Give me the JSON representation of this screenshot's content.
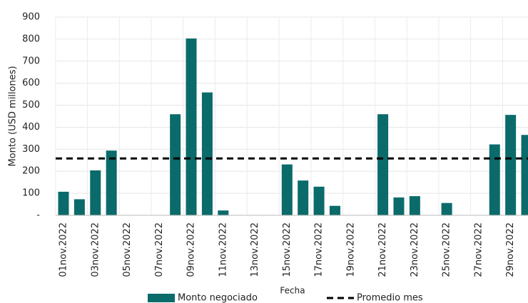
{
  "chart_data": {
    "type": "bar",
    "x_label": "Fecha",
    "y_label": "Monto (USD millones)",
    "categories": [
      "01nov.2022",
      null,
      "03nov.2022",
      null,
      "05nov.2022",
      null,
      "07nov.2022",
      null,
      "09nov.2022",
      null,
      "11nov.2022",
      null,
      "13nov.2022",
      null,
      "15nov.2022",
      null,
      "17nov.2022",
      null,
      "19nov.2022",
      null,
      "21nov.2022",
      null,
      "23nov.2022",
      null,
      "25nov.2022",
      null,
      "27nov.2022",
      null,
      "29nov.2022",
      null
    ],
    "series": [
      {
        "name": "Monto negociado",
        "color": "#0b6b6b",
        "values": [
          107,
          73,
          204,
          294,
          null,
          null,
          null,
          459,
          803,
          558,
          22,
          null,
          null,
          null,
          231,
          158,
          130,
          43,
          null,
          null,
          459,
          81,
          87,
          null,
          56,
          null,
          null,
          322,
          456,
          365
        ]
      },
      {
        "name": "Promedio mes",
        "color": "#000000",
        "style": "dashed",
        "value": 258
      }
    ],
    "ylim": [
      0,
      900
    ],
    "yticks": [
      {
        "value": 0,
        "label": "-"
      },
      100,
      200,
      300,
      400,
      500,
      600,
      700,
      800,
      900
    ],
    "grid": true,
    "legend": "bottom"
  }
}
